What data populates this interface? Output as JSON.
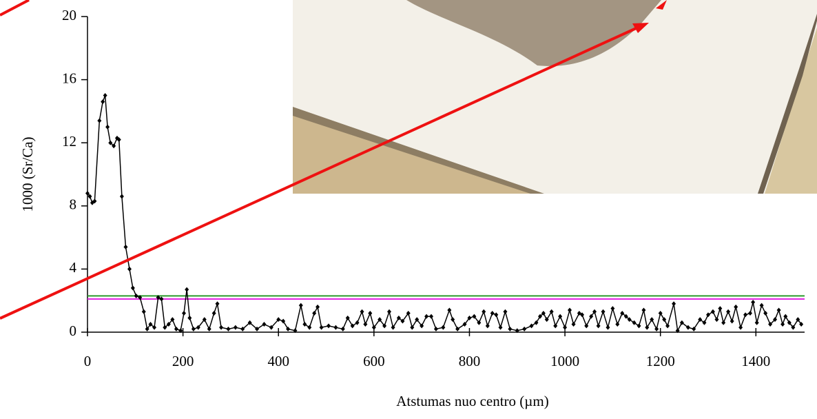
{
  "chart_data": {
    "type": "line",
    "x_label": "Atstumas nuo centro (µm)",
    "y_label": "1000 (Sr/Ca)",
    "xlim": [
      0,
      1502
    ],
    "ylim": [
      0,
      20
    ],
    "xticks": [
      0,
      200,
      400,
      600,
      800,
      1000,
      1200,
      1400
    ],
    "yticks": [
      0,
      4,
      8,
      12,
      16,
      20
    ],
    "hlines": [
      {
        "value": 2.3,
        "color": "#2a9a2a"
      },
      {
        "value": 2.1,
        "color": "#e020e0"
      }
    ],
    "series": [
      {
        "color": "#000000",
        "x": [
          0,
          5,
          10,
          15,
          25,
          32,
          37,
          42,
          48,
          55,
          62,
          66,
          72,
          80,
          88,
          95,
          102,
          110,
          118,
          125,
          132,
          140,
          148,
          155,
          162,
          170,
          178,
          186,
          195,
          202,
          208,
          214,
          222,
          232,
          245,
          255,
          265,
          272,
          280,
          295,
          310,
          325,
          340,
          355,
          370,
          385,
          400,
          410,
          420,
          435,
          447,
          455,
          465,
          475,
          482,
          490,
          505,
          520,
          535,
          545,
          555,
          565,
          575,
          582,
          592,
          600,
          612,
          622,
          632,
          640,
          652,
          660,
          672,
          680,
          690,
          700,
          710,
          720,
          730,
          745,
          758,
          765,
          775,
          790,
          800,
          810,
          820,
          830,
          838,
          848,
          856,
          865,
          875,
          885,
          900,
          915,
          930,
          940,
          948,
          955,
          962,
          972,
          980,
          990,
          1000,
          1010,
          1018,
          1030,
          1036,
          1045,
          1055,
          1062,
          1070,
          1080,
          1090,
          1100,
          1110,
          1120,
          1128,
          1135,
          1145,
          1155,
          1165,
          1172,
          1182,
          1192,
          1200,
          1208,
          1215,
          1228,
          1236,
          1245,
          1258,
          1270,
          1283,
          1292,
          1300,
          1310,
          1318,
          1325,
          1332,
          1342,
          1350,
          1358,
          1368,
          1378,
          1388,
          1394,
          1402,
          1412,
          1420,
          1430,
          1440,
          1448,
          1456,
          1462,
          1470,
          1478,
          1488,
          1495
        ],
        "values": [
          8.8,
          8.6,
          8.2,
          8.3,
          13.4,
          14.6,
          15,
          13,
          12,
          11.8,
          12.3,
          12.2,
          8.6,
          5.4,
          4,
          2.8,
          2.3,
          2.2,
          1.3,
          0.2,
          0.5,
          0.3,
          2.2,
          2.1,
          0.3,
          0.5,
          0.8,
          0.2,
          0.1,
          1.2,
          2.7,
          0.9,
          0.2,
          0.3,
          0.8,
          0.2,
          1.2,
          1.8,
          0.3,
          0.2,
          0.3,
          0.2,
          0.6,
          0.2,
          0.5,
          0.3,
          0.8,
          0.7,
          0.2,
          0.1,
          1.7,
          0.5,
          0.3,
          1.2,
          1.6,
          0.3,
          0.4,
          0.3,
          0.2,
          0.9,
          0.4,
          0.6,
          1.3,
          0.5,
          1.2,
          0.3,
          0.8,
          0.4,
          1.3,
          0.3,
          0.9,
          0.7,
          1.2,
          0.3,
          0.8,
          0.4,
          1.0,
          1.0,
          0.2,
          0.3,
          1.4,
          0.8,
          0.2,
          0.5,
          0.9,
          1.0,
          0.6,
          1.3,
          0.4,
          1.2,
          1.1,
          0.3,
          1.3,
          0.2,
          0.1,
          0.2,
          0.4,
          0.6,
          1.0,
          1.2,
          0.8,
          1.3,
          0.4,
          1.0,
          0.3,
          1.4,
          0.5,
          1.2,
          1.1,
          0.4,
          1.0,
          1.3,
          0.4,
          1.3,
          0.3,
          1.5,
          0.5,
          1.2,
          1.0,
          0.8,
          0.6,
          0.4,
          1.4,
          0.3,
          0.8,
          0.2,
          1.2,
          0.8,
          0.4,
          1.8,
          0.1,
          0.6,
          0.3,
          0.2,
          0.8,
          0.6,
          1.1,
          1.3,
          0.8,
          1.5,
          0.6,
          1.3,
          0.7,
          1.6,
          0.3,
          1.1,
          1.2,
          1.9,
          0.6,
          1.7,
          1.2,
          0.5,
          0.8,
          1.4,
          0.5,
          1.0,
          0.6,
          0.3,
          0.8,
          0.5
        ]
      }
    ]
  }
}
